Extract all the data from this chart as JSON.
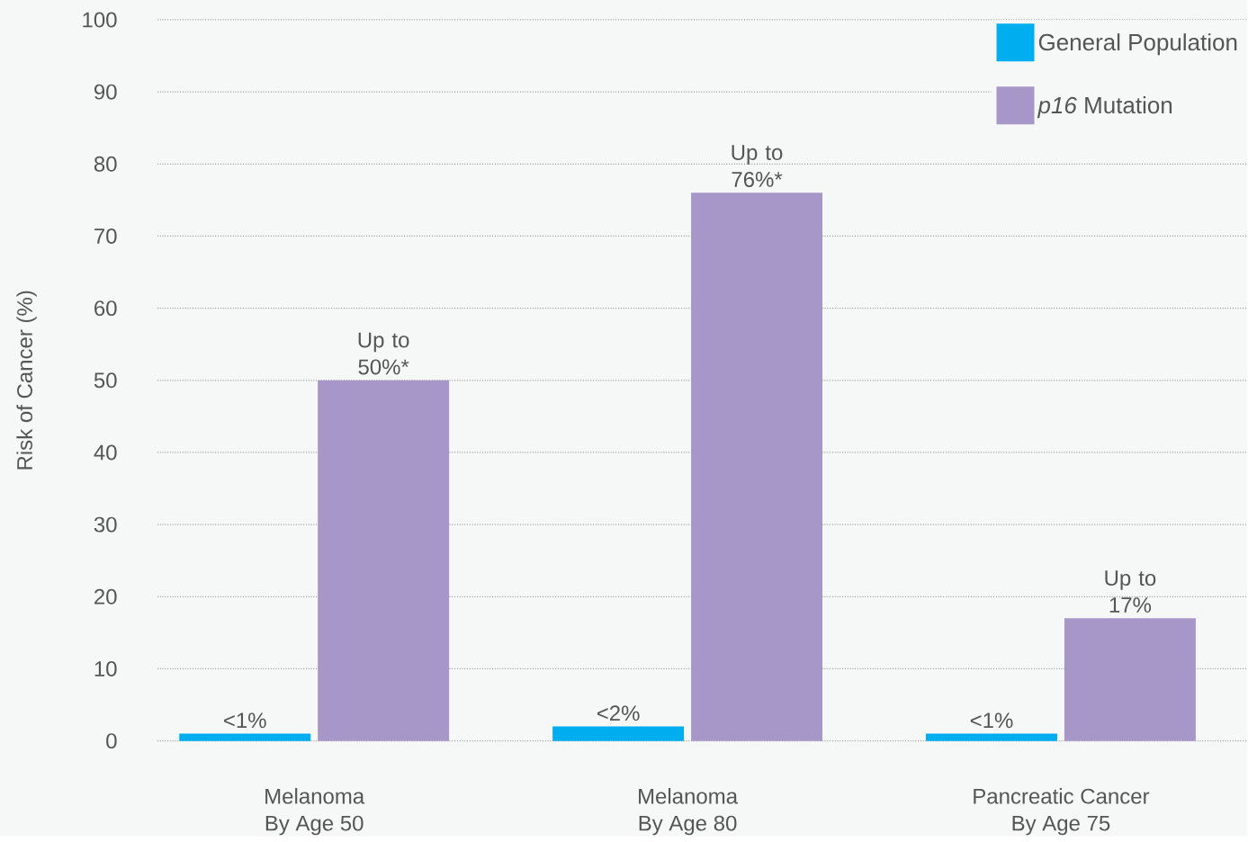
{
  "chart_data": {
    "type": "bar",
    "ylabel": "Risk of Cancer (%)",
    "categories": [
      "Melanoma By Age 50",
      "Melanoma By Age 80",
      "Pancreatic Cancer By Age 75"
    ],
    "series": [
      {
        "name": "General Population",
        "color": "#00aeef",
        "values": [
          1,
          2,
          1
        ],
        "value_labels": [
          "<1%",
          "<2%",
          "<1%"
        ]
      },
      {
        "name": "*p16* Mutation",
        "color": "#a796c8",
        "values": [
          50,
          76,
          17
        ],
        "value_labels": [
          "Up to 50%*",
          "Up to 76%*",
          "Up to 17%"
        ]
      }
    ],
    "ylim": [
      0,
      100
    ],
    "yticks": [
      0,
      10,
      20,
      30,
      40,
      50,
      60,
      70,
      80,
      90,
      100
    ],
    "grid": "y",
    "legend": "top right"
  }
}
